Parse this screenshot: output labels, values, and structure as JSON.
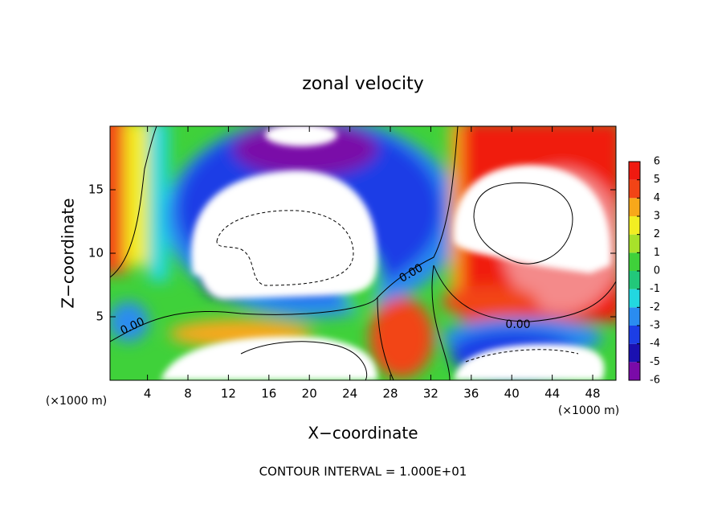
{
  "chart_data": {
    "type": "contour",
    "title": "zonal velocity",
    "x_label": "X−coordinate",
    "y_label": "Z−coordinate",
    "x_unit": "(×1000 m)",
    "y_unit": "(×1000 m)",
    "xlim": [
      0.3,
      50.3
    ],
    "xticks": [
      4,
      8,
      12,
      16,
      20,
      24,
      28,
      32,
      36,
      40,
      44,
      48
    ],
    "ylim": [
      0,
      20
    ],
    "yticks": [
      5,
      10,
      15
    ],
    "contour_labels": [
      "0.00",
      "0.00",
      "0.00"
    ],
    "footnote": "CONTOUR INTERVAL = 1.000E+01",
    "colorbar": {
      "ticks": [
        -6,
        -5,
        -4,
        -3,
        -2,
        -1,
        0,
        1,
        2,
        3,
        4,
        5,
        6
      ],
      "colors": [
        "#7a0aa8",
        "#1a10b0",
        "#1c3ee6",
        "#2a8cf0",
        "#22d8e0",
        "#22c87a",
        "#3fd13a",
        "#a8e22a",
        "#f2ee22",
        "#f8a81a",
        "#f24416",
        "#f01a10",
        "#f48a8a"
      ]
    }
  }
}
